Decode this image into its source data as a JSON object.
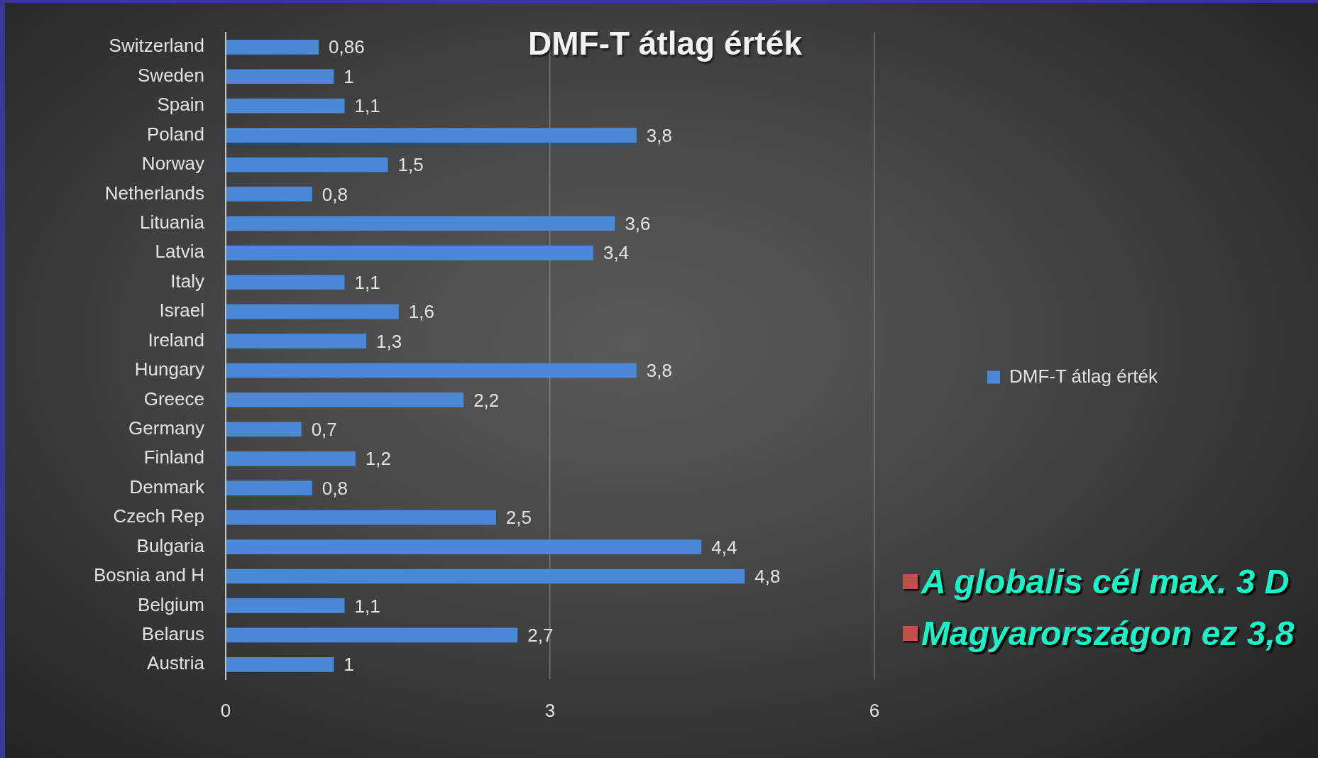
{
  "chart_data": {
    "type": "bar",
    "orientation": "horizontal",
    "title": "DMF-T átlag érték",
    "categories": [
      "Switzerland",
      "Sweden",
      "Spain",
      "Poland",
      "Norway",
      "Netherlands",
      "Lituania",
      "Latvia",
      "Italy",
      "Israel",
      "Ireland",
      "Hungary",
      "Greece",
      "Germany",
      "Finland",
      "Denmark",
      "Czech Rep",
      "Bulgaria",
      "Bosnia and H",
      "Belgium",
      "Belarus",
      "Austria"
    ],
    "series": [
      {
        "name": "DMF-T átlag érték",
        "color": "#4a88d8",
        "values": [
          0.86,
          1,
          1.1,
          3.8,
          1.5,
          0.8,
          3.6,
          3.4,
          1.1,
          1.6,
          1.3,
          3.8,
          2.2,
          0.7,
          1.2,
          0.8,
          2.5,
          4.4,
          4.8,
          1.1,
          2.7,
          1
        ],
        "value_labels": [
          "0,86",
          "1",
          "1,1",
          "3,8",
          "1,5",
          "0,8",
          "3,6",
          "3,4",
          "1,1",
          "1,6",
          "1,3",
          "3,8",
          "2,2",
          "0,7",
          "1,2",
          "0,8",
          "2,5",
          "4,4",
          "4,8",
          "1,1",
          "2,7",
          "1"
        ]
      }
    ],
    "xlim": [
      0,
      6
    ],
    "xticks": [
      0,
      3,
      6
    ],
    "grid": "x",
    "legend": "right",
    "annotations": [
      "A globalis cél max. 3 D",
      "Magyarországon ez 3,8"
    ]
  }
}
